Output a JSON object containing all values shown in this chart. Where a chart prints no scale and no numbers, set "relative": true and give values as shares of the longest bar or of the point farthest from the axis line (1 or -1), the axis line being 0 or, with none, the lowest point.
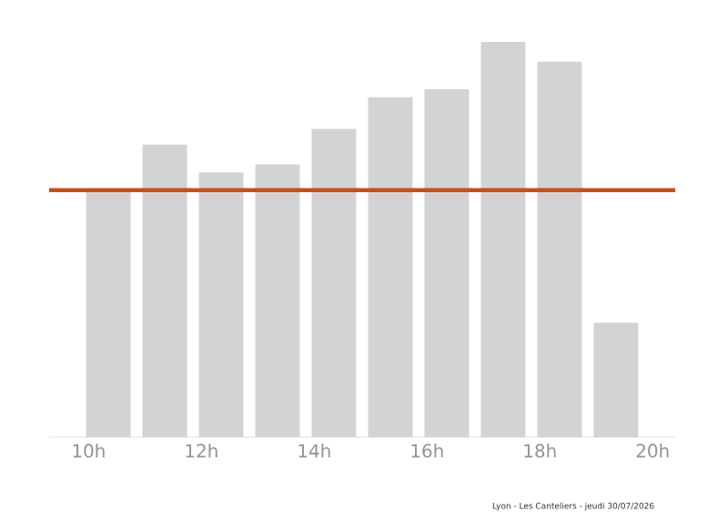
{
  "chart_data": {
    "type": "bar",
    "relative": true,
    "x": [
      10.35,
      11.35,
      12.35,
      13.35,
      14.35,
      15.35,
      16.35,
      17.35,
      18.35,
      19.35
    ],
    "values": [
      0.62,
      0.74,
      0.67,
      0.69,
      0.78,
      0.86,
      0.88,
      1,
      0.95,
      0.29
    ],
    "color": "#d3d3d3",
    "xlim": [
      9.3,
      20.4
    ],
    "xticks": [
      {
        "value": 10,
        "label": "10h"
      },
      {
        "value": 12,
        "label": "12h"
      },
      {
        "value": 14,
        "label": "14h"
      },
      {
        "value": 16,
        "label": "16h"
      },
      {
        "value": 18,
        "label": "18h"
      },
      {
        "value": 20,
        "label": "20h"
      }
    ],
    "ref_lines": [
      {
        "axis": "y",
        "value": 0.625,
        "color": "#c4511a"
      }
    ],
    "annotations": [
      "Lyon - Les Canteliers - jeudi 30/07/2026"
    ]
  }
}
